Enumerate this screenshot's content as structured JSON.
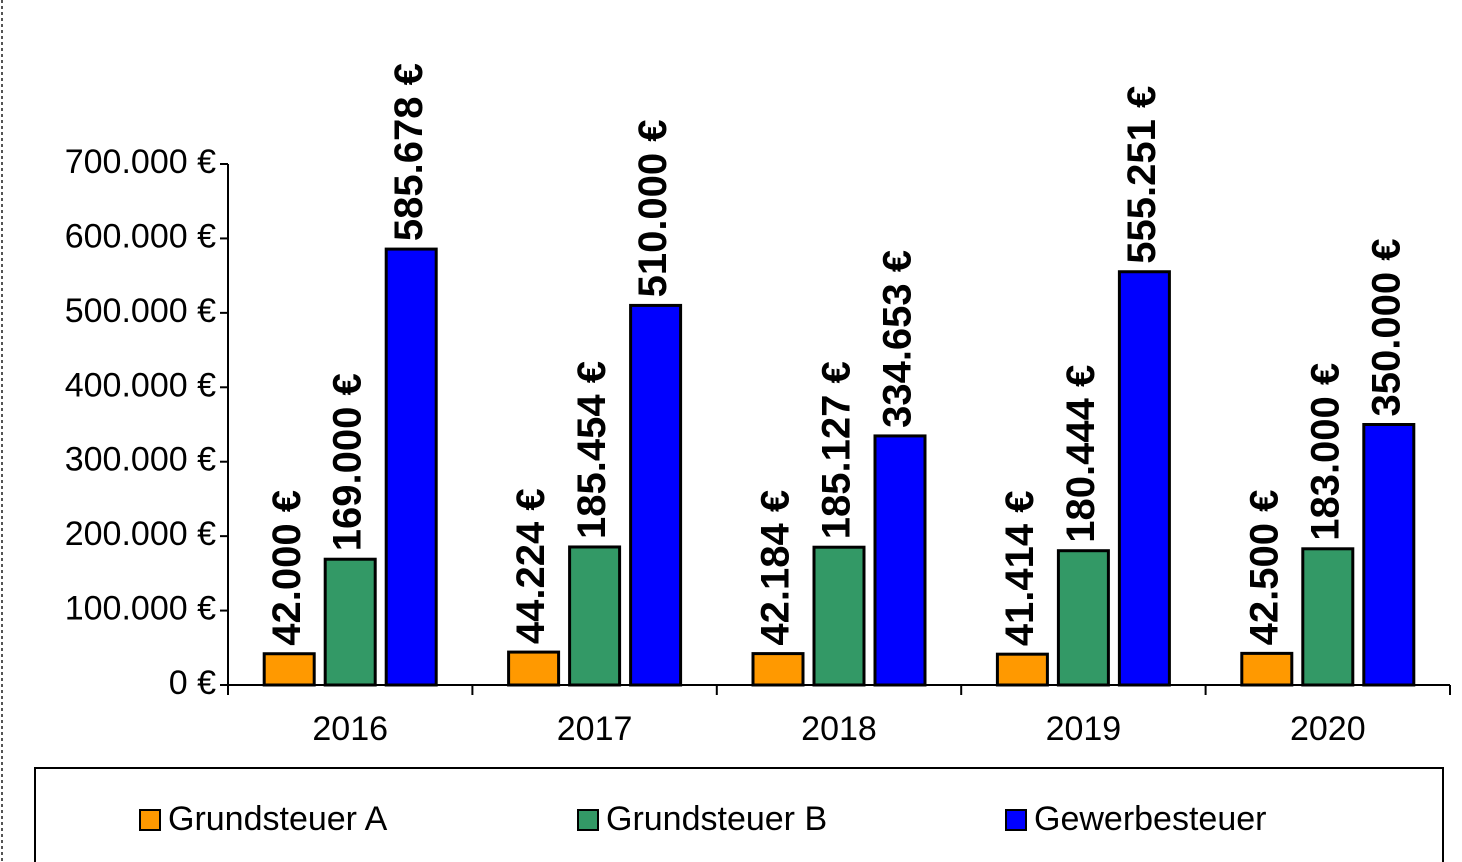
{
  "chart_data": {
    "type": "bar",
    "categories": [
      "2016",
      "2017",
      "2018",
      "2019",
      "2020"
    ],
    "series": [
      {
        "name": "Grundsteuer A",
        "color": "#ff9900",
        "values": [
          42000,
          44224,
          42184,
          41414,
          42500
        ],
        "value_labels": [
          "42.000 €",
          "44.224 €",
          "42.184 €",
          "41.414 €",
          "42.500 €"
        ]
      },
      {
        "name": "Grundsteuer B",
        "color": "#339966",
        "values": [
          169000,
          185454,
          185127,
          180444,
          183000
        ],
        "value_labels": [
          "169.000 €",
          "185.454 €",
          "185.127 €",
          "180.444 €",
          "183.000 €"
        ]
      },
      {
        "name": "Gewerbesteuer",
        "color": "#0000ff",
        "values": [
          585678,
          510000,
          334653,
          555251,
          350000
        ],
        "value_labels": [
          "585.678 €",
          "510.000 €",
          "334.653 €",
          "555.251 €",
          "350.000 €"
        ]
      }
    ],
    "ylim": [
      0,
      700000
    ],
    "yticks": [
      {
        "value": 0,
        "label": "0 €"
      },
      {
        "value": 100000,
        "label": "100.000 €"
      },
      {
        "value": 200000,
        "label": "200.000 €"
      },
      {
        "value": 300000,
        "label": "300.000 €"
      },
      {
        "value": 400000,
        "label": "400.000 €"
      },
      {
        "value": 500000,
        "label": "500.000 €"
      },
      {
        "value": 600000,
        "label": "600.000 €"
      },
      {
        "value": 700000,
        "label": "700.000 €"
      }
    ],
    "grid": false,
    "legend": "bottom"
  }
}
